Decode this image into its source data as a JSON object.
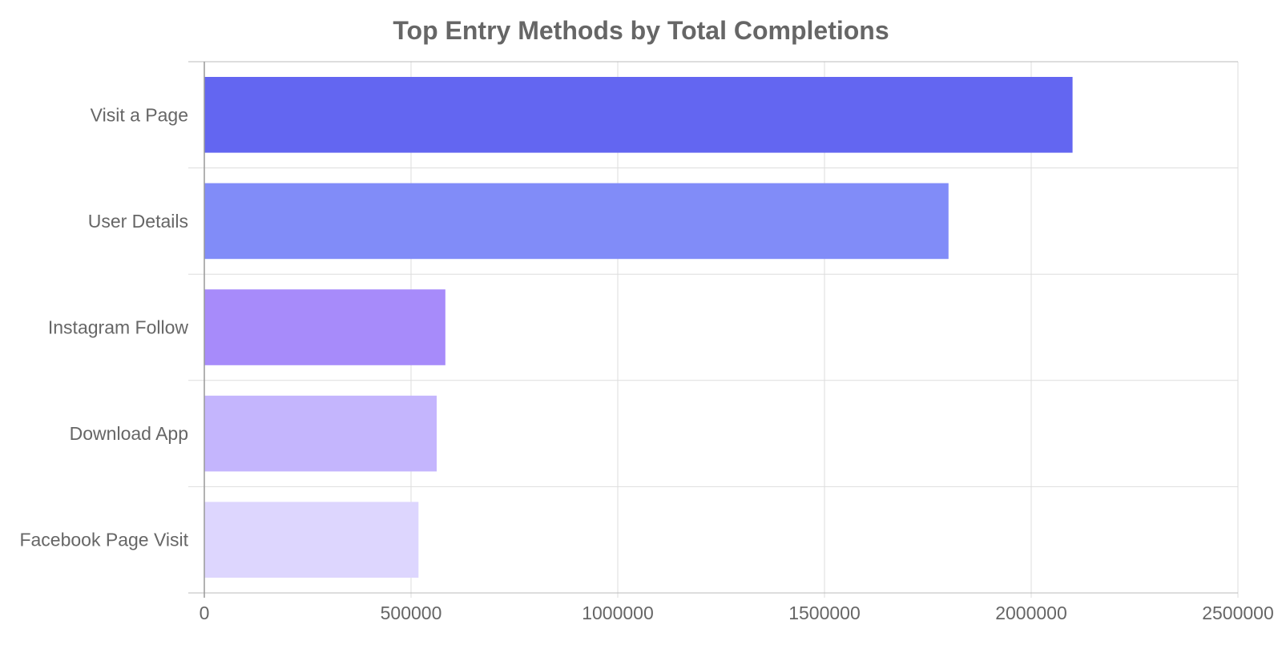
{
  "chart_data": {
    "type": "bar",
    "orientation": "horizontal",
    "title": "Top Entry Methods by Total Completions",
    "xlabel": "",
    "ylabel": "",
    "categories": [
      "Visit a Page",
      "User Details",
      "Instagram Follow",
      "Download App",
      "Facebook Page Visit"
    ],
    "values": [
      2100000,
      1800000,
      583000,
      562000,
      518000
    ],
    "colors": [
      "#6366f1",
      "#818cf8",
      "#a78bfa",
      "#c4b5fd",
      "#ddd6fe"
    ],
    "xlim": [
      0,
      2500000
    ],
    "xticks": [
      0,
      500000,
      1000000,
      1500000,
      2000000,
      2500000
    ],
    "xtick_labels": [
      "0",
      "500000",
      "1000000",
      "1500000",
      "2000000",
      "2500000"
    ],
    "grid": true,
    "legend": "none"
  },
  "style": {
    "text_color": "#666666",
    "grid_color": "#dddddd",
    "axis_color": "#999999"
  }
}
